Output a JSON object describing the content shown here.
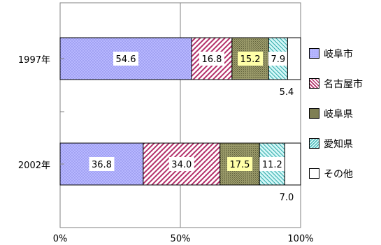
{
  "chart_data": {
    "type": "bar",
    "orientation": "horizontal",
    "stacked": "percent",
    "categories": [
      "1997年",
      "2002年"
    ],
    "series": [
      {
        "name": "岐阜市",
        "values": [
          54.6,
          36.8
        ],
        "color": "#b3b3ff"
      },
      {
        "name": "名古屋市",
        "values": [
          16.8,
          34.0
        ],
        "color": "#ffffff"
      },
      {
        "name": "岐阜県",
        "values": [
          15.2,
          17.5
        ],
        "color": "#8a8a5c"
      },
      {
        "name": "愛知県",
        "values": [
          7.9,
          11.2
        ],
        "color": "#c8f5f5"
      },
      {
        "name": "その他",
        "values": [
          5.4,
          7.0
        ],
        "color": "#ffffff"
      }
    ],
    "value_labels": [
      [
        "54.6",
        "16.8",
        "15.2",
        "7.9",
        "5.4"
      ],
      [
        "36.8",
        "34.0",
        "17.5",
        "11.2",
        "7.0"
      ]
    ],
    "x_ticks": [
      "0%",
      "50%",
      "100%"
    ],
    "xlim": [
      0,
      100
    ],
    "grid": true,
    "legend_position": "right"
  }
}
